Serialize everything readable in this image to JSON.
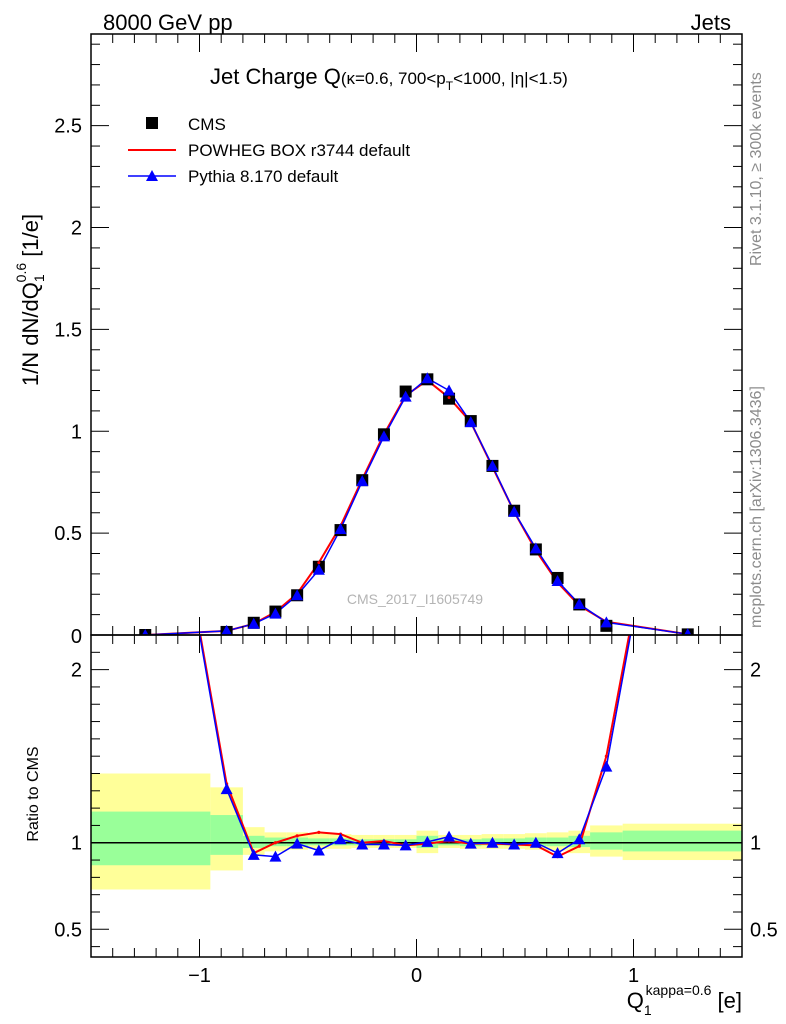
{
  "header": {
    "energy": "8000 GeV pp",
    "category": "Jets"
  },
  "side_text": {
    "rivet": "Rivet 3.1.10, ≥ 300k events",
    "mcplots": "mcplots.cern.ch [arXiv:1306.3436]"
  },
  "watermark": "CMS_2017_I1605749",
  "colors": {
    "cms": "#000000",
    "powheg": "#ff0000",
    "pythia": "#0000ff",
    "band_inner": "#99ff99",
    "band_outer": "#ffff99"
  },
  "chart_data": [
    {
      "type": "scatter",
      "title_main": "Jet Charge Q",
      "title_sub": "(κ=0.6, 700<p",
      "title_sub_sub": "T",
      "title_sub_tail": "<1000, |η|<1.5)",
      "ylabel": "1/N dN/dQ",
      "ylabel_sub": "1",
      "ylabel_sup": "0.6",
      "ylabel_tail": " [1/e]",
      "xlim": [
        -1.5,
        1.5
      ],
      "ylim": [
        0,
        2.95
      ],
      "yticks": [
        0.5,
        1,
        1.5,
        2,
        2.5
      ],
      "ytick_labels": [
        "0.5",
        "1",
        "1.5",
        "2",
        "2.5"
      ],
      "x": [
        -1.2,
        -0.9,
        -0.7,
        -0.6,
        -0.5,
        -0.4,
        -0.3,
        -0.2,
        -0.1,
        0.0,
        0.1,
        0.2,
        0.3,
        0.4,
        0.5,
        0.6,
        0.7,
        0.8,
        0.9,
        1.2
      ],
      "legend_position": "top-left",
      "series": [
        {
          "name": "CMS",
          "marker": "square",
          "x": [
            -1.25,
            -0.875,
            -0.75,
            -0.65,
            -0.55,
            -0.45,
            -0.35,
            -0.25,
            -0.15,
            -0.05,
            0.05,
            0.15,
            0.25,
            0.35,
            0.45,
            0.55,
            0.65,
            0.75,
            0.875,
            1.25
          ],
          "values": [
            0.0,
            0.015,
            0.06,
            0.115,
            0.195,
            0.335,
            0.515,
            0.76,
            0.985,
            1.195,
            1.255,
            1.16,
            1.05,
            0.83,
            0.61,
            0.42,
            0.28,
            0.15,
            0.045,
            0.003
          ]
        },
        {
          "name": "POWHEG BOX r3744 default",
          "marker": "line",
          "x": [
            -1.25,
            -0.875,
            -0.75,
            -0.65,
            -0.55,
            -0.45,
            -0.35,
            -0.25,
            -0.15,
            -0.05,
            0.05,
            0.15,
            0.25,
            0.35,
            0.45,
            0.55,
            0.65,
            0.75,
            0.875,
            1.25
          ],
          "values": [
            0.0,
            0.02,
            0.055,
            0.113,
            0.203,
            0.355,
            0.535,
            0.765,
            0.985,
            1.175,
            1.25,
            1.165,
            1.045,
            0.825,
            0.605,
            0.415,
            0.258,
            0.145,
            0.065,
            0.004
          ]
        },
        {
          "name": "Pythia 8.170 default",
          "marker": "triangle",
          "x": [
            -1.25,
            -0.875,
            -0.75,
            -0.65,
            -0.55,
            -0.45,
            -0.35,
            -0.25,
            -0.15,
            -0.05,
            0.05,
            0.15,
            0.25,
            0.35,
            0.45,
            0.55,
            0.65,
            0.75,
            0.875,
            1.25
          ],
          "values": [
            0.0,
            0.02,
            0.055,
            0.105,
            0.195,
            0.32,
            0.52,
            0.755,
            0.975,
            1.17,
            1.26,
            1.2,
            1.045,
            0.83,
            0.605,
            0.425,
            0.265,
            0.152,
            0.062,
            0.004
          ]
        }
      ]
    },
    {
      "type": "line",
      "ylabel": "Ratio to CMS",
      "xlabel": "Q",
      "xlabel_sub": "1",
      "xlabel_sup": "kappa=0.6",
      "xlabel_tail": " [e]",
      "xlim": [
        -1.5,
        1.5
      ],
      "ylim": [
        0.34,
        2.2
      ],
      "xticks": [
        -1,
        0,
        1
      ],
      "xtick_labels": [
        "−1",
        "0",
        "1"
      ],
      "yticks": [
        0.5,
        1,
        2
      ],
      "ytick_labels": [
        "0.5",
        "1",
        "2"
      ],
      "reference_line": 1,
      "bands": [
        {
          "xmin": -1.5,
          "xmax": -0.95,
          "inner": [
            0.87,
            1.18
          ],
          "outer": [
            0.73,
            1.4
          ]
        },
        {
          "xmin": -0.95,
          "xmax": -0.8,
          "inner": [
            0.93,
            1.16
          ],
          "outer": [
            0.84,
            1.32
          ]
        },
        {
          "xmin": -0.8,
          "xmax": -0.7,
          "inner": [
            0.97,
            1.04
          ],
          "outer": [
            0.93,
            1.09
          ]
        },
        {
          "xmin": -0.7,
          "xmax": -0.6,
          "inner": [
            0.98,
            1.03
          ],
          "outer": [
            0.95,
            1.06
          ]
        },
        {
          "xmin": -0.6,
          "xmax": -0.5,
          "inner": [
            0.98,
            1.03
          ],
          "outer": [
            0.96,
            1.06
          ]
        },
        {
          "xmin": -0.5,
          "xmax": -0.4,
          "inner": [
            0.985,
            1.025
          ],
          "outer": [
            0.965,
            1.055
          ]
        },
        {
          "xmin": -0.4,
          "xmax": -0.3,
          "inner": [
            0.985,
            1.025
          ],
          "outer": [
            0.965,
            1.05
          ]
        },
        {
          "xmin": -0.3,
          "xmax": -0.2,
          "inner": [
            0.985,
            1.02
          ],
          "outer": [
            0.97,
            1.045
          ]
        },
        {
          "xmin": -0.2,
          "xmax": -0.1,
          "inner": [
            0.985,
            1.02
          ],
          "outer": [
            0.97,
            1.045
          ]
        },
        {
          "xmin": -0.1,
          "xmax": 0.0,
          "inner": [
            0.985,
            1.02
          ],
          "outer": [
            0.97,
            1.045
          ]
        },
        {
          "xmin": 0.0,
          "xmax": 0.1,
          "inner": [
            0.97,
            1.04
          ],
          "outer": [
            0.94,
            1.07
          ]
        },
        {
          "xmin": 0.1,
          "xmax": 0.2,
          "inner": [
            0.985,
            1.02
          ],
          "outer": [
            0.97,
            1.045
          ]
        },
        {
          "xmin": 0.2,
          "xmax": 0.3,
          "inner": [
            0.98,
            1.02
          ],
          "outer": [
            0.965,
            1.045
          ]
        },
        {
          "xmin": 0.3,
          "xmax": 0.4,
          "inner": [
            0.985,
            1.025
          ],
          "outer": [
            0.965,
            1.05
          ]
        },
        {
          "xmin": 0.4,
          "xmax": 0.5,
          "inner": [
            0.985,
            1.025
          ],
          "outer": [
            0.965,
            1.05
          ]
        },
        {
          "xmin": 0.5,
          "xmax": 0.6,
          "inner": [
            0.98,
            1.03
          ],
          "outer": [
            0.96,
            1.055
          ]
        },
        {
          "xmin": 0.6,
          "xmax": 0.7,
          "inner": [
            0.98,
            1.03
          ],
          "outer": [
            0.955,
            1.06
          ]
        },
        {
          "xmin": 0.7,
          "xmax": 0.8,
          "inner": [
            0.975,
            1.04
          ],
          "outer": [
            0.94,
            1.07
          ]
        },
        {
          "xmin": 0.8,
          "xmax": 0.95,
          "inner": [
            0.96,
            1.06
          ],
          "outer": [
            0.92,
            1.1
          ]
        },
        {
          "xmin": 0.95,
          "xmax": 1.5,
          "inner": [
            0.95,
            1.07
          ],
          "outer": [
            0.9,
            1.11
          ]
        }
      ],
      "series": [
        {
          "name": "POWHEG BOX r3744 default",
          "x": [
            -1.25,
            -0.875,
            -0.75,
            -0.65,
            -0.55,
            -0.45,
            -0.35,
            -0.25,
            -0.15,
            -0.05,
            0.05,
            0.15,
            0.25,
            0.35,
            0.45,
            0.55,
            0.65,
            0.75,
            0.875,
            1.25
          ],
          "values": [
            4.0,
            1.34,
            0.94,
            1.0,
            1.04,
            1.06,
            1.05,
            1.0,
            1.01,
            0.985,
            0.995,
            1.01,
            0.995,
            0.995,
            0.99,
            0.985,
            0.92,
            0.98,
            1.5,
            4.0
          ]
        },
        {
          "name": "Pythia 8.170 default",
          "x": [
            -1.25,
            -0.875,
            -0.75,
            -0.65,
            -0.55,
            -0.45,
            -0.35,
            -0.25,
            -0.15,
            -0.05,
            0.05,
            0.15,
            0.25,
            0.35,
            0.45,
            0.55,
            0.65,
            0.75,
            0.875,
            1.25
          ],
          "values": [
            4.0,
            1.31,
            0.93,
            0.92,
            0.995,
            0.955,
            1.02,
            0.99,
            0.99,
            0.985,
            1.005,
            1.035,
            0.995,
            1.0,
            0.99,
            1.0,
            0.94,
            1.02,
            1.44,
            4.0
          ]
        }
      ]
    }
  ]
}
